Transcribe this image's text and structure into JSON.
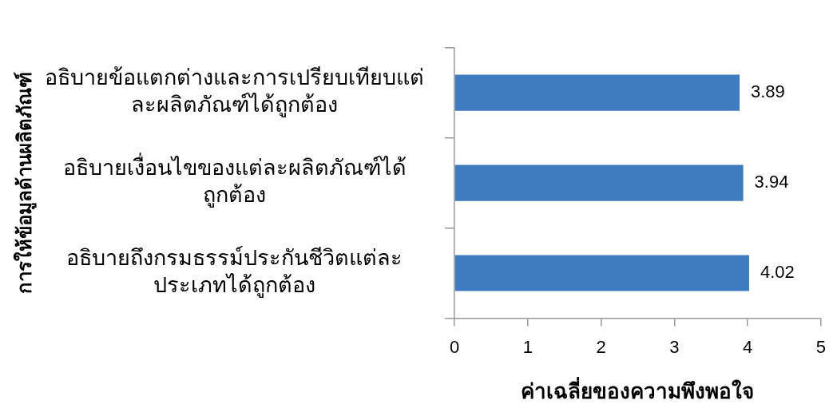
{
  "chart_data": {
    "type": "bar",
    "orientation": "horizontal",
    "xlabel": "ค่าเฉลี่ยของความพึงพอใจ",
    "ylabel": "การให้ข้อมูลด้านผลิตภัณฑ์",
    "categories": [
      "อธิบายข้อแตกต่างและการเปรียบเทียบแต่\nละผลิตภัณฑ์ได้ถูกต้อง",
      "อธิบายเงื่อนไขของแต่ละผลิตภัณฑ์ได้\nถูกต้อง",
      "อธิบายถึงกรมธรรม์ประกันชีวิตแต่ละ\nประเภทได้ถูกต้อง"
    ],
    "values": [
      3.89,
      3.94,
      4.02
    ],
    "color": "#3f7cbf",
    "xlim": [
      0,
      5
    ],
    "xticks": [
      0,
      1,
      2,
      3,
      4,
      5
    ],
    "grid": false,
    "legend": false,
    "data_labels": true
  }
}
